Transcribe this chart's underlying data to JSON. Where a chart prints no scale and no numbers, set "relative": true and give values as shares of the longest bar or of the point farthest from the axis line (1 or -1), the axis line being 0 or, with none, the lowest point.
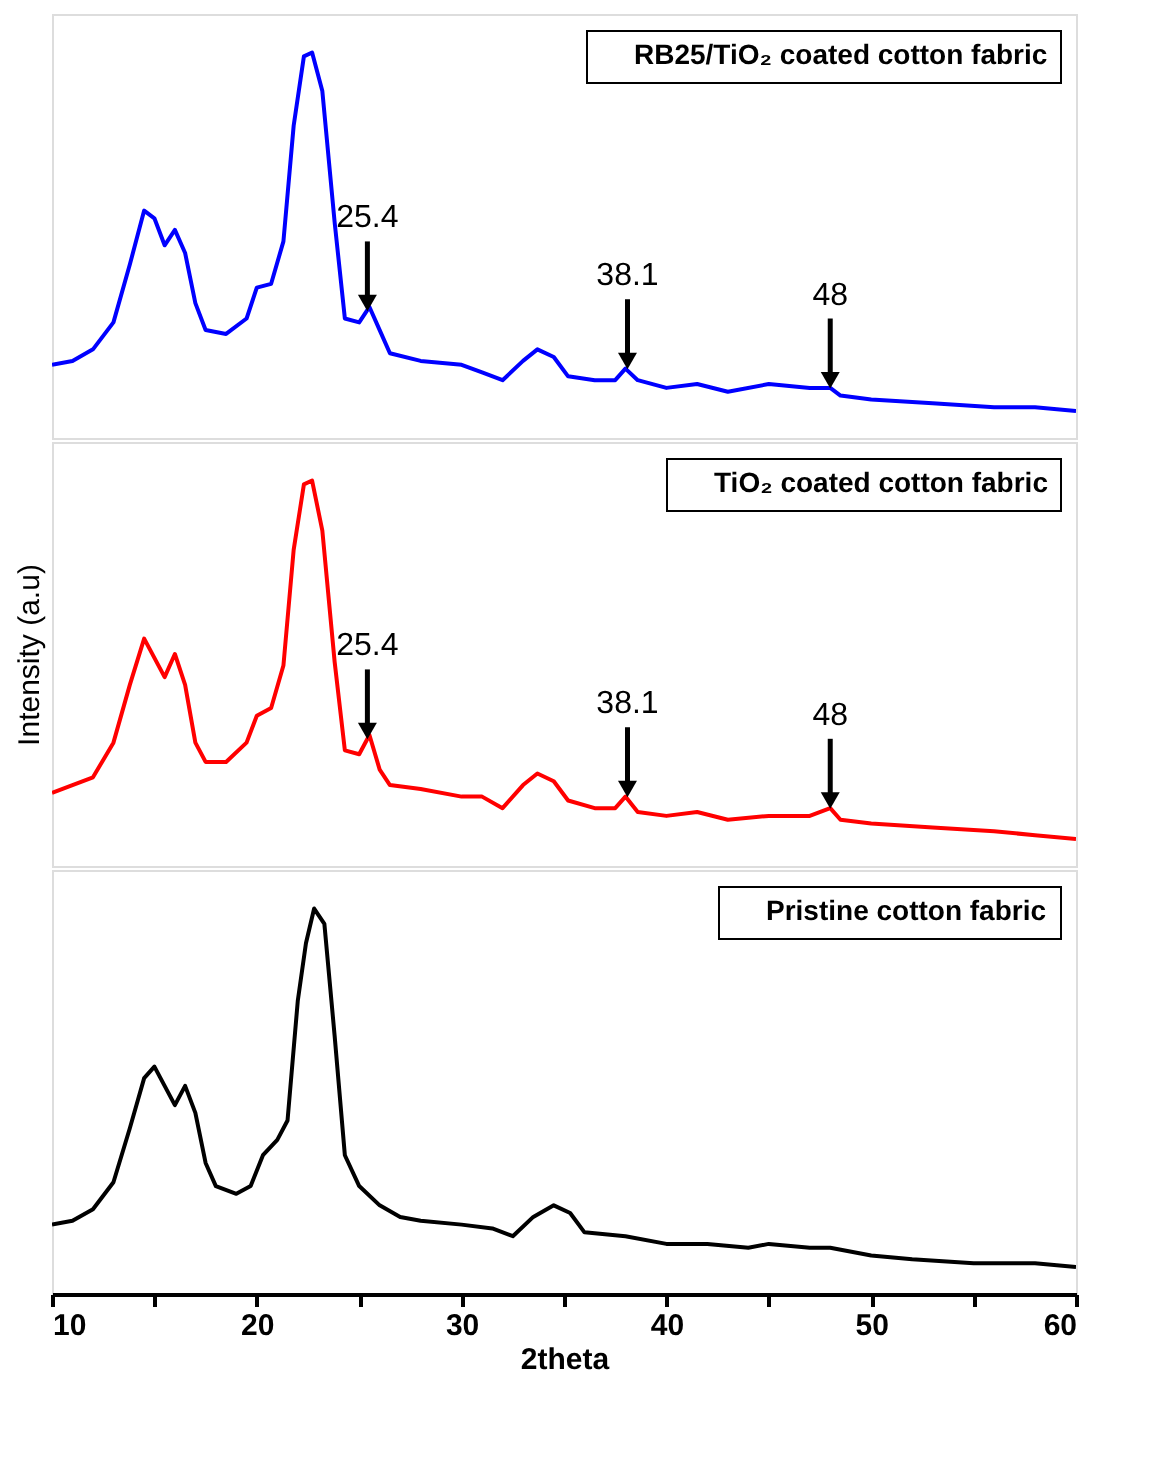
{
  "chart_data": [
    {
      "type": "line",
      "relative": true,
      "legend": "top right",
      "tick_labels": false,
      "xlim": [
        10,
        60
      ],
      "x": [
        10,
        11,
        12,
        13,
        13.8,
        14.5,
        15,
        15.5,
        16,
        16.5,
        17,
        17.5,
        18.5,
        19.5,
        20,
        20.7,
        21.3,
        21.8,
        22.3,
        22.7,
        23.2,
        23.8,
        24.3,
        25,
        25.5,
        26,
        26.5,
        28,
        30,
        31,
        32,
        33,
        33.7,
        34.5,
        35.2,
        36.5,
        37.5,
        38,
        38.6,
        40,
        41.5,
        43,
        45,
        47,
        48,
        48.5,
        50,
        53,
        56,
        58,
        60
      ],
      "series": [
        {
          "name": "RB25/TiO₂ coated cotton fabric",
          "color": "#0000ff",
          "values": [
            0.19,
            0.2,
            0.23,
            0.3,
            0.45,
            0.59,
            0.57,
            0.5,
            0.54,
            0.48,
            0.35,
            0.28,
            0.27,
            0.31,
            0.39,
            0.4,
            0.51,
            0.81,
            0.99,
            1,
            0.9,
            0.56,
            0.31,
            0.3,
            0.34,
            0.28,
            0.22,
            0.2,
            0.19,
            0.17,
            0.15,
            0.2,
            0.23,
            0.21,
            0.16,
            0.15,
            0.15,
            0.18,
            0.15,
            0.13,
            0.14,
            0.12,
            0.14,
            0.13,
            0.13,
            0.11,
            0.1,
            0.09,
            0.08,
            0.08,
            0.07
          ]
        }
      ],
      "annotations": [
        {
          "text": "25.4",
          "x": 25.4,
          "y": 0.33
        },
        {
          "text": "38.1",
          "x": 38.1,
          "y": 0.18
        },
        {
          "text": "48",
          "x": 48,
          "y": 0.13
        }
      ]
    },
    {
      "type": "line",
      "relative": true,
      "legend": "top right",
      "tick_labels": false,
      "xlim": [
        10,
        60
      ],
      "ylabel": "Intensity (a.u)",
      "x": [
        10,
        11,
        12,
        13,
        13.8,
        14.5,
        15,
        15.5,
        16,
        16.5,
        17,
        17.5,
        18.5,
        19.5,
        20,
        20.7,
        21.3,
        21.8,
        22.3,
        22.7,
        23.2,
        23.8,
        24.3,
        25,
        25.5,
        26,
        26.5,
        28,
        30,
        31,
        32,
        33,
        33.7,
        34.5,
        35.2,
        36.5,
        37.5,
        38,
        38.6,
        40,
        41.5,
        43,
        45,
        47,
        48,
        48.5,
        50,
        53,
        56,
        58,
        60
      ],
      "series": [
        {
          "name": "TiO₂ coated cotton fabric",
          "color": "#ff0000",
          "values": [
            0.19,
            0.21,
            0.23,
            0.32,
            0.47,
            0.59,
            0.54,
            0.49,
            0.55,
            0.47,
            0.32,
            0.27,
            0.27,
            0.32,
            0.39,
            0.41,
            0.52,
            0.82,
            0.99,
            1,
            0.87,
            0.53,
            0.3,
            0.29,
            0.34,
            0.25,
            0.21,
            0.2,
            0.18,
            0.18,
            0.15,
            0.21,
            0.24,
            0.22,
            0.17,
            0.15,
            0.15,
            0.18,
            0.14,
            0.13,
            0.14,
            0.12,
            0.13,
            0.13,
            0.15,
            0.12,
            0.11,
            0.1,
            0.09,
            0.08,
            0.07
          ]
        }
      ],
      "annotations": [
        {
          "text": "25.4",
          "x": 25.4,
          "y": 0.33
        },
        {
          "text": "38.1",
          "x": 38.1,
          "y": 0.18
        },
        {
          "text": "48",
          "x": 48,
          "y": 0.15
        }
      ]
    },
    {
      "type": "line",
      "relative": true,
      "legend": "top right",
      "tick_labels": "x",
      "xlim": [
        10,
        60
      ],
      "xlabel": "2theta",
      "xticks": [
        10,
        {
          "value": 15,
          "label": null
        },
        20,
        {
          "value": 25,
          "label": null
        },
        30,
        {
          "value": 35,
          "label": null
        },
        40,
        {
          "value": 45,
          "label": null
        },
        50,
        {
          "value": 55,
          "label": null
        },
        60
      ],
      "x": [
        10,
        11,
        12,
        13,
        13.8,
        14.5,
        15,
        15.5,
        16,
        16.5,
        17,
        17.5,
        18,
        19,
        19.7,
        20.3,
        21,
        21.5,
        22,
        22.4,
        22.8,
        23.3,
        23.8,
        24.3,
        25,
        26,
        27,
        28,
        30,
        31.5,
        32.5,
        33.5,
        34.5,
        35.3,
        36,
        38,
        40,
        42,
        44,
        45,
        47,
        48,
        50,
        52,
        55,
        58,
        60
      ],
      "series": [
        {
          "name": "Pristine cotton fabric",
          "color": "#000000",
          "values": [
            0.18,
            0.19,
            0.22,
            0.29,
            0.43,
            0.56,
            0.59,
            0.54,
            0.49,
            0.54,
            0.47,
            0.34,
            0.28,
            0.26,
            0.28,
            0.36,
            0.4,
            0.45,
            0.76,
            0.91,
            1,
            0.96,
            0.67,
            0.36,
            0.28,
            0.23,
            0.2,
            0.19,
            0.18,
            0.17,
            0.15,
            0.2,
            0.23,
            0.21,
            0.16,
            0.15,
            0.13,
            0.13,
            0.12,
            0.13,
            0.12,
            0.12,
            0.1,
            0.09,
            0.08,
            0.08,
            0.07
          ]
        }
      ]
    }
  ]
}
